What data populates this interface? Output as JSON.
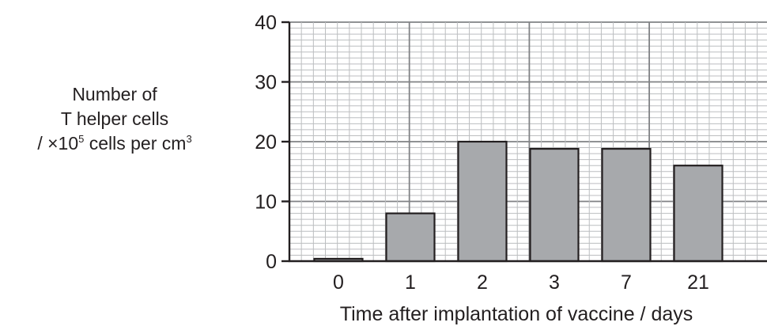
{
  "chart_data": {
    "type": "bar",
    "categories": [
      "0",
      "1",
      "2",
      "3",
      "7",
      "21"
    ],
    "values": [
      0.4,
      8,
      20,
      18.8,
      18.8,
      16
    ],
    "title": "",
    "ylabel_lines": [
      "Number of",
      "T helper cells",
      "/ ×10",
      "5",
      " cells per cm",
      "3"
    ],
    "xlabel": "Time after implantation of vaccine / days",
    "ylim": [
      0,
      40
    ],
    "yticks": [
      0,
      10,
      20,
      30,
      40
    ],
    "grid": true,
    "legend": "none",
    "bar_color": "#a7a9ac",
    "grid_color_minor": "#bcbec0",
    "grid_color_major": "#808285"
  }
}
